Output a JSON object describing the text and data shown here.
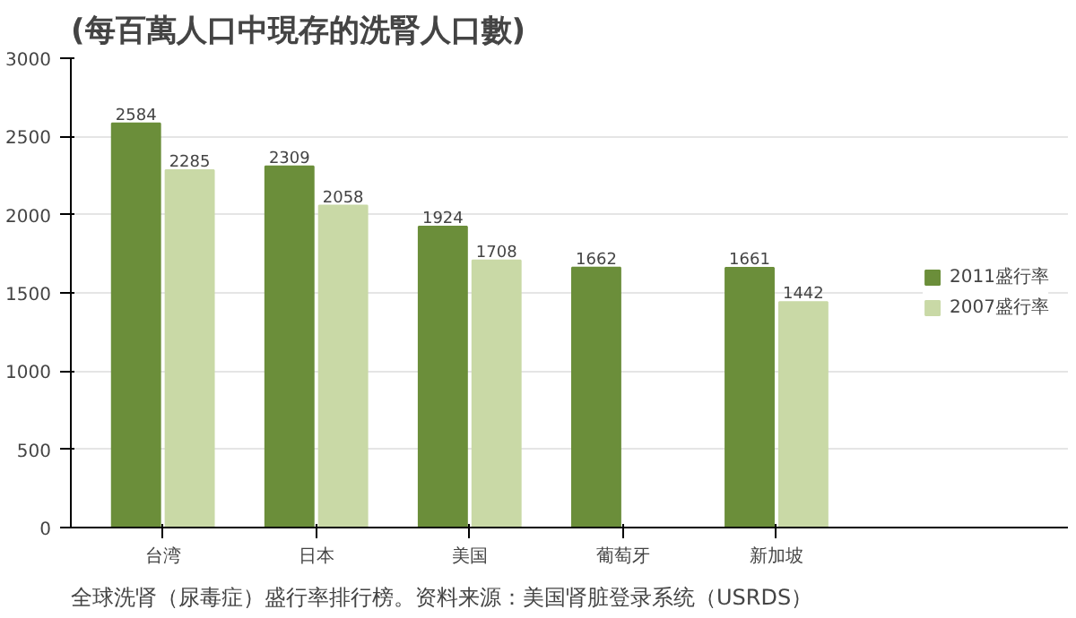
{
  "chart_data": {
    "type": "bar",
    "title": "(每百萬人口中現存的洗腎人口數)",
    "categories": [
      "台湾",
      "日本",
      "美国",
      "葡萄牙",
      "新加坡"
    ],
    "series": [
      {
        "name": "2011盛行率",
        "color": "#6b8e3a",
        "values": [
          2584,
          2309,
          1924,
          1662,
          1661
        ]
      },
      {
        "name": "2007盛行率",
        "color": "#c9d9a6",
        "values": [
          2285,
          2058,
          1708,
          null,
          1442
        ]
      }
    ],
    "ylim": [
      0,
      3000
    ],
    "yticks": [
      0,
      500,
      1000,
      1500,
      2000,
      2500,
      3000
    ],
    "grid": "y",
    "legend": "right",
    "data_labels": true,
    "annotations": [
      "全球洗肾（尿毒症）盛行率排行榜。资料来源：美国肾脏登录系统（USRDS）"
    ]
  }
}
